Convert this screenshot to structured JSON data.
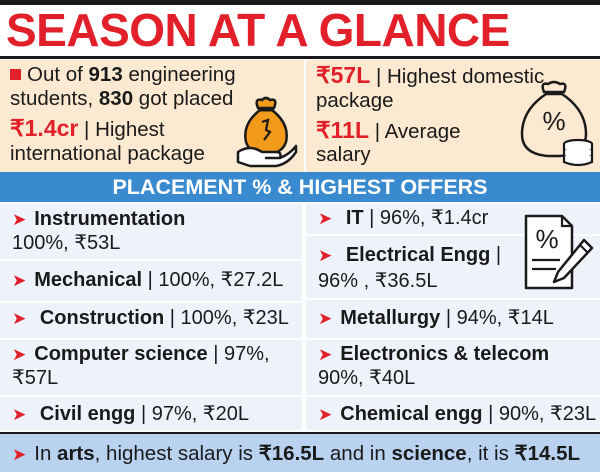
{
  "title": "SEASON AT A GLANCE",
  "summary": {
    "left": {
      "line1_pre": "Out of ",
      "students_total": "913",
      "line1_post": " engineering",
      "line2_pre": "students, ",
      "students_placed": "830",
      "line2_post": " got placed",
      "intl_value": "₹1.4cr",
      "intl_label_l1": " | Highest",
      "intl_label_l2": "international package"
    },
    "right": {
      "domestic_value": "₹57L",
      "domestic_label_l1": " | Highest domestic",
      "domestic_label_l2": "package",
      "average_value": "₹11L",
      "average_label_l1": " | Average",
      "average_label_l2": "salary"
    }
  },
  "band_title": "PLACEMENT % & HIGHEST OFFERS",
  "branches": {
    "instrumentation": {
      "name": "Instrumentation",
      "stats": "100%, ₹53L"
    },
    "mechanical": {
      "name": "Mechanical",
      "stats": " | 100%, ₹27.2L"
    },
    "construction": {
      "name": "Construction",
      "stats": " | 100%, ₹23L"
    },
    "computer_science": {
      "name": "Computer science",
      "stats_l1": " | 97%,",
      "stats_l2": "₹57L"
    },
    "civil": {
      "name": "Civil engg",
      "stats": " | 97%, ₹20L"
    },
    "it": {
      "name": "IT",
      "stats": " | 96%, ₹1.4cr"
    },
    "electrical": {
      "name": "Electrical Engg",
      "stats_l1": " |",
      "stats_l2": "96% , ₹36.5L"
    },
    "metallurgy": {
      "name": "Metallurgy",
      "stats": " | 94%, ₹14L"
    },
    "electronics": {
      "name": "Electronics & telecom",
      "stats": "90%, ₹40L"
    },
    "chemical": {
      "name": "Chemical engg",
      "stats": " | 90%, ₹23L"
    }
  },
  "footer": {
    "t1": "In ",
    "arts": "arts",
    "t2": ", highest salary is ",
    "arts_salary": "₹16.5L",
    "t3": " and in ",
    "science": "science",
    "t4": ", it is ",
    "science_salary": "₹14.5L"
  },
  "colors": {
    "accent": "#e2202a",
    "band": "#3a8ad0",
    "cell": "#eef3fb",
    "summary_bg": "#fbe9d2",
    "footer_bg": "#b9d2ef"
  },
  "icons": [
    "money-bag-hand-icon",
    "percent-money-bag-coins-icon",
    "percent-document-pencil-icon"
  ]
}
